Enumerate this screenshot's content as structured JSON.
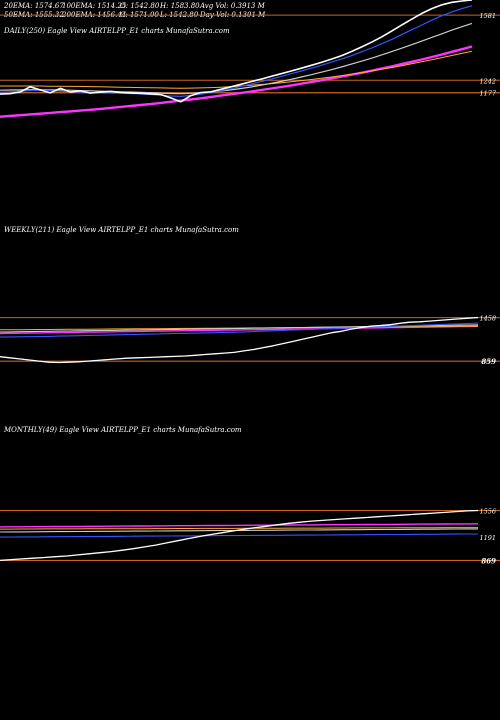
{
  "legend": {
    "row1": [
      "20EMA: 1574.67",
      "100EMA: 1514.25",
      "O: 1542.80",
      "H: 1583.80",
      "Avg Vol: 0.3913 M"
    ],
    "row2": [
      "50EMA: 1555.32",
      "200EMA: 1456.44",
      "C: 1571.00",
      "L: 1542.80",
      "Day Vol: 0.1301 M"
    ]
  },
  "colors": {
    "background": "#000000",
    "price": "#ffffff",
    "ema20": "#3355ff",
    "ema50": "#cccccc",
    "ema100": "#ffaa33",
    "ema200": "#ff33ff",
    "level": "#c8641e"
  },
  "chart_data": [
    {
      "type": "line",
      "title": "DAILY(250) Eagle View AIRTELPP_E1 charts MunafaSutra.com",
      "y_ticks": [
        {
          "label": "1581",
          "value": 1581
        },
        {
          "label": "1242",
          "value": 1242
        },
        {
          "label": "1177",
          "value": 1177
        }
      ],
      "ylim": [
        1035,
        1660
      ],
      "levels": [
        1177,
        1242,
        1581
      ],
      "series": [
        {
          "color_key": "price",
          "values": [
            1170,
            1172,
            1181,
            1208,
            1192,
            1176,
            1200,
            1181,
            1187,
            1175,
            1180,
            1184,
            1179,
            1175,
            1174,
            1171,
            1168,
            1150,
            1130,
            1162,
            1178,
            1182,
            1195,
            1208,
            1221,
            1235,
            1248,
            1262,
            1276,
            1290,
            1305,
            1320,
            1335,
            1352,
            1370,
            1392,
            1415,
            1440,
            1468,
            1498,
            1530,
            1560,
            1590,
            1615,
            1635,
            1648,
            1655,
            1660
          ]
        },
        {
          "color_key": "ema20",
          "values": [
            1180,
            1182,
            1185,
            1188,
            1190,
            1188,
            1185,
            1182,
            1180,
            1178,
            1176,
            1175,
            1174,
            1173,
            1171,
            1168,
            1164,
            1160,
            1158,
            1163,
            1170,
            1178,
            1188,
            1198,
            1210,
            1222,
            1235,
            1248,
            1262,
            1276,
            1290,
            1305,
            1320,
            1336,
            1352,
            1370,
            1390,
            1410,
            1432,
            1455,
            1480,
            1505,
            1530,
            1555,
            1578,
            1598,
            1615,
            1630
          ]
        },
        {
          "color_key": "ema50",
          "values": [
            1190,
            1191,
            1192,
            1193,
            1193,
            1192,
            1191,
            1190,
            1188,
            1187,
            1185,
            1184,
            1182,
            1181,
            1179,
            1177,
            1175,
            1173,
            1172,
            1174,
            1177,
            1181,
            1186,
            1192,
            1199,
            1207,
            1216,
            1226,
            1236,
            1247,
            1259,
            1271,
            1284,
            1297,
            1311,
            1326,
            1341,
            1357,
            1374,
            1391,
            1409,
            1427,
            1446,
            1465,
            1484,
            1503,
            1521,
            1538
          ]
        },
        {
          "color_key": "ema100",
          "values": [
            1212,
            1212,
            1212,
            1212,
            1212,
            1211,
            1211,
            1210,
            1210,
            1209,
            1208,
            1207,
            1206,
            1205,
            1204,
            1203,
            1202,
            1201,
            1200,
            1201,
            1202,
            1204,
            1206,
            1209,
            1212,
            1216,
            1220,
            1224,
            1229,
            1234,
            1240,
            1246,
            1252,
            1259,
            1266,
            1274,
            1282,
            1290,
            1299,
            1308,
            1318,
            1328,
            1338,
            1349,
            1360,
            1371,
            1382,
            1393
          ]
        },
        {
          "color_key": "ema200",
          "values": [
            1052,
            1056,
            1060,
            1064,
            1068,
            1072,
            1076,
            1080,
            1084,
            1088,
            1093,
            1098,
            1103,
            1108,
            1113,
            1118,
            1124,
            1130,
            1136,
            1142,
            1148,
            1155,
            1162,
            1169,
            1176,
            1183,
            1191,
            1199,
            1207,
            1215,
            1224,
            1233,
            1242,
            1251,
            1261,
            1271,
            1281,
            1292,
            1303,
            1314,
            1326,
            1338,
            1350,
            1363,
            1376,
            1390,
            1404,
            1418
          ]
        }
      ]
    },
    {
      "type": "line",
      "title": "WEEKLY(211) Eagle View AIRTELPP_E1 charts MunafaSutra.com",
      "y_ticks": [
        {
          "label": "1458",
          "value": 1458
        },
        {
          "label": "859",
          "value": 859
        }
      ],
      "ylim": [
        600,
        1700
      ],
      "levels": [
        859,
        1458
      ],
      "series": [
        {
          "color_key": "price",
          "values": [
            920,
            905,
            890,
            875,
            860,
            845,
            840,
            845,
            850,
            860,
            870,
            880,
            890,
            900,
            905,
            910,
            915,
            920,
            925,
            930,
            940,
            950,
            960,
            970,
            980,
            1000,
            1020,
            1045,
            1070,
            1100,
            1130,
            1160,
            1190,
            1220,
            1250,
            1270,
            1300,
            1320,
            1340,
            1350,
            1360,
            1380,
            1395,
            1400,
            1410,
            1420,
            1430,
            1440,
            1450,
            1460
          ]
        },
        {
          "color_key": "ema20",
          "values": [
            1190,
            1192,
            1194,
            1196,
            1198,
            1200,
            1203,
            1206,
            1209,
            1212,
            1215,
            1218,
            1221,
            1224,
            1227,
            1230,
            1233,
            1236,
            1239,
            1242,
            1245,
            1248,
            1251,
            1254,
            1257,
            1262,
            1267,
            1272,
            1277,
            1282,
            1287,
            1292,
            1297,
            1302,
            1307,
            1312,
            1317,
            1322,
            1327,
            1332,
            1337,
            1342,
            1347,
            1352,
            1357,
            1362,
            1367,
            1372,
            1377,
            1382
          ]
        },
        {
          "color_key": "ema50",
          "values": [
            1260,
            1262,
            1264,
            1266,
            1268,
            1270,
            1272,
            1274,
            1276,
            1278,
            1280,
            1282,
            1284,
            1286,
            1288,
            1290,
            1292,
            1294,
            1296,
            1298,
            1300,
            1302,
            1304,
            1306,
            1308,
            1310,
            1312,
            1314,
            1316,
            1318,
            1320,
            1322,
            1324,
            1326,
            1328,
            1330,
            1332,
            1334,
            1336,
            1338,
            1340,
            1342,
            1344,
            1346,
            1348,
            1350,
            1352,
            1354,
            1356,
            1358
          ]
        },
        {
          "color_key": "ema100",
          "values": [
            1290,
            1291,
            1292,
            1293,
            1294,
            1295,
            1296,
            1297,
            1298,
            1299,
            1300,
            1301,
            1302,
            1303,
            1304,
            1305,
            1306,
            1307,
            1308,
            1309,
            1310,
            1311,
            1312,
            1313,
            1314,
            1315,
            1316,
            1317,
            1318,
            1319,
            1320,
            1321,
            1322,
            1323,
            1324,
            1325,
            1326,
            1327,
            1328,
            1329,
            1330,
            1331,
            1332,
            1333,
            1334,
            1335,
            1336,
            1337,
            1338,
            1339
          ]
        },
        {
          "color_key": "ema200",
          "values": [
            1240,
            1242,
            1244,
            1246,
            1248,
            1250,
            1252,
            1254,
            1256,
            1258,
            1260,
            1262,
            1264,
            1266,
            1268,
            1270,
            1272,
            1274,
            1276,
            1278,
            1280,
            1282,
            1284,
            1286,
            1288,
            1290,
            1292,
            1294,
            1296,
            1298,
            1300,
            1302,
            1304,
            1306,
            1308,
            1310,
            1312,
            1314,
            1316,
            1318,
            1320,
            1322,
            1324,
            1326,
            1328,
            1330,
            1332,
            1334,
            1336,
            1338
          ]
        }
      ]
    },
    {
      "type": "line",
      "title": "MONTHLY(49) Eagle View AIRTELPP_E1 charts MunafaSutra.com",
      "y_ticks": [
        {
          "label": "1556",
          "value": 1556
        },
        {
          "label": "1191",
          "value": 1191
        },
        {
          "label": "869",
          "value": 869
        }
      ],
      "ylim": [
        600,
        1700
      ],
      "levels": [
        869,
        1556
      ],
      "series": [
        {
          "color_key": "price",
          "values": [
            870,
            880,
            890,
            900,
            910,
            920,
            930,
            945,
            960,
            975,
            990,
            1010,
            1030,
            1055,
            1080,
            1110,
            1140,
            1170,
            1200,
            1225,
            1250,
            1275,
            1300,
            1320,
            1340,
            1360,
            1380,
            1395,
            1410,
            1420,
            1430,
            1440,
            1450,
            1460,
            1470,
            1480,
            1490,
            1500,
            1510,
            1520,
            1530,
            1540,
            1550,
            1556
          ]
        },
        {
          "color_key": "ema20",
          "values": [
            1190,
            1191,
            1192,
            1193,
            1194,
            1195,
            1196,
            1197,
            1198,
            1199,
            1200,
            1201,
            1202,
            1203,
            1204,
            1205,
            1206,
            1207,
            1208,
            1209,
            1210,
            1211,
            1212,
            1213,
            1214,
            1215,
            1216,
            1217,
            1218,
            1219,
            1220,
            1221,
            1222,
            1223,
            1224,
            1225,
            1226,
            1227,
            1228,
            1229,
            1230,
            1231,
            1232,
            1233
          ]
        },
        {
          "color_key": "ema50",
          "values": [
            1260,
            1261,
            1262,
            1263,
            1264,
            1265,
            1266,
            1267,
            1268,
            1269,
            1270,
            1271,
            1272,
            1273,
            1274,
            1275,
            1276,
            1277,
            1278,
            1279,
            1280,
            1281,
            1282,
            1283,
            1284,
            1285,
            1286,
            1287,
            1288,
            1289,
            1290,
            1291,
            1292,
            1293,
            1294,
            1295,
            1296,
            1297,
            1298,
            1299,
            1300,
            1301,
            1302,
            1303
          ]
        },
        {
          "color_key": "ema100",
          "values": [
            1300,
            1300,
            1301,
            1301,
            1302,
            1302,
            1303,
            1303,
            1304,
            1304,
            1305,
            1305,
            1306,
            1306,
            1307,
            1307,
            1308,
            1308,
            1309,
            1309,
            1310,
            1310,
            1311,
            1311,
            1312,
            1312,
            1313,
            1313,
            1314,
            1314,
            1315,
            1315,
            1316,
            1316,
            1317,
            1317,
            1318,
            1318,
            1319,
            1319,
            1320,
            1320,
            1321,
            1321
          ]
        },
        {
          "color_key": "ema200",
          "values": [
            1330,
            1331,
            1332,
            1333,
            1334,
            1335,
            1336,
            1337,
            1338,
            1339,
            1340,
            1341,
            1342,
            1343,
            1344,
            1345,
            1346,
            1347,
            1348,
            1349,
            1350,
            1351,
            1352,
            1353,
            1354,
            1355,
            1356,
            1357,
            1358,
            1359,
            1360,
            1361,
            1362,
            1363,
            1364,
            1365,
            1366,
            1367,
            1368,
            1369,
            1370,
            1371,
            1372,
            1373
          ]
        }
      ]
    }
  ]
}
